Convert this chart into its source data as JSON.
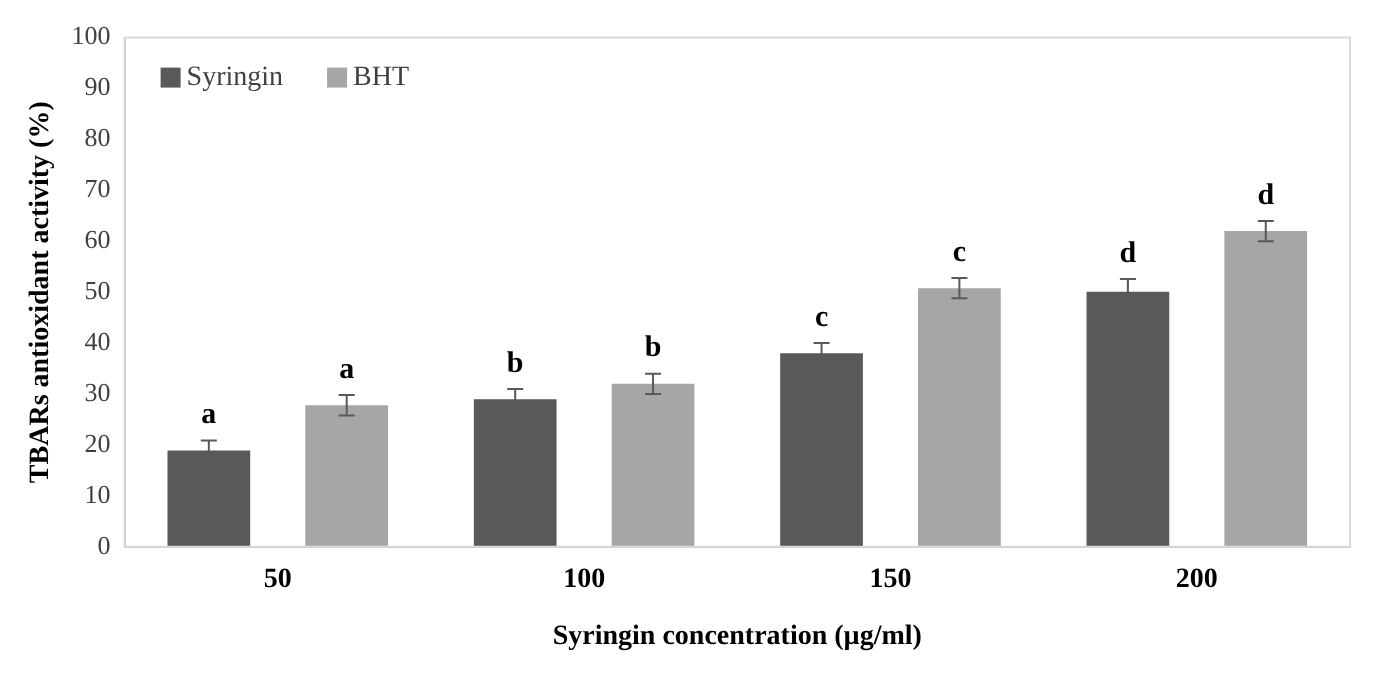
{
  "chart_data": {
    "type": "bar",
    "xlabel": "Syringin concentration (µg/ml)",
    "ylabel": "TBARs antioxidant activity (%)",
    "categories": [
      "50",
      "100",
      "150",
      "200"
    ],
    "series": [
      {
        "name": "Syringin",
        "color": "#595959",
        "values": [
          18.9,
          29.0,
          38.0,
          50.1
        ],
        "errors": [
          2,
          2,
          2,
          2.5
        ]
      },
      {
        "name": "BHT",
        "color": "#a6a6a6",
        "values": [
          27.8,
          32.0,
          50.8,
          62.0
        ],
        "errors": [
          2,
          2,
          2,
          2
        ]
      }
    ],
    "ylim": [
      0,
      100
    ],
    "yticks": [
      0,
      10,
      20,
      30,
      40,
      50,
      60,
      70,
      80,
      90,
      100
    ],
    "grid": false,
    "legend": "top left",
    "annotations": [
      "a",
      "a",
      "b",
      "b",
      "c",
      "c",
      "d",
      "d"
    ]
  }
}
